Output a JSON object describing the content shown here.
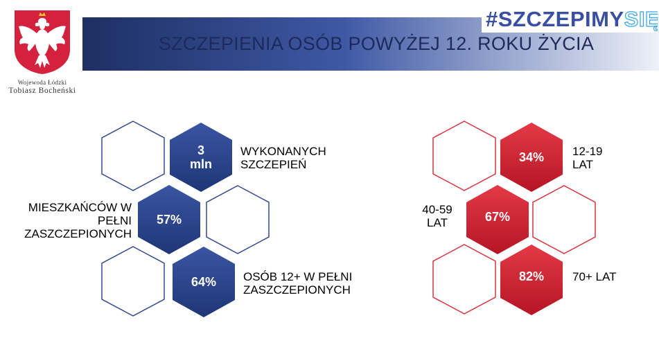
{
  "header": {
    "title": "SZCZEPIENIA OSÓB POWYŻEJ 12. ROKU ŻYCIA",
    "hashtag_main": "#SZCZEPIMY",
    "hashtag_end": "SIĘ",
    "emblem_line1": "Wojewoda Łódzki",
    "emblem_line2": "Tobiasz Bocheński"
  },
  "colors": {
    "navy": "#1f3677",
    "navy_light": "#3a55a2",
    "red": "#c81a2a",
    "red_light": "#e43a46",
    "outline_blue": "#33498c",
    "outline_red": "#d8333f"
  },
  "blue_stats": [
    {
      "value_line1": "3",
      "value_line2": "mln",
      "label_line1": "WYKONANYCH",
      "label_line2": "SZCZEPIEŃ",
      "label_line3": ""
    },
    {
      "value_line1": "57%",
      "value_line2": "",
      "label_line1": "MIESZKAŃCÓW W",
      "label_line2": "PEŁNI",
      "label_line3": "ZASZCZEPIONYCH"
    },
    {
      "value_line1": "64%",
      "value_line2": "",
      "label_line1": "OSÓB 12+ W PEŁNI",
      "label_line2": "ZASZCZEPIONYCH",
      "label_line3": ""
    }
  ],
  "red_stats": [
    {
      "value": "34%",
      "label_line1": "12-19",
      "label_line2": "LAT"
    },
    {
      "value": "67%",
      "label_line1": "40-59",
      "label_line2": "LAT"
    },
    {
      "value": "82%",
      "label_line1": "70+ LAT",
      "label_line2": ""
    }
  ]
}
